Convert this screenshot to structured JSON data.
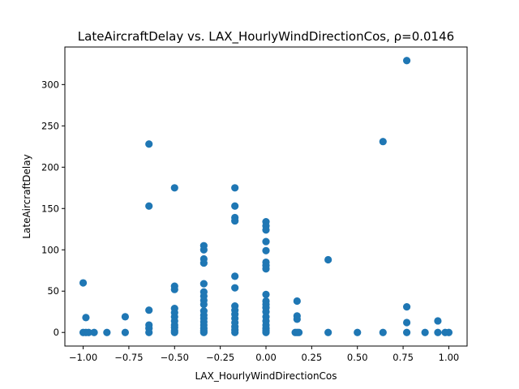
{
  "chart_data": {
    "type": "scatter",
    "title": "LateAircraftDelay vs. LAX_HourlyWindDirectionCos, ρ=0.0146",
    "xlabel": "LAX_HourlyWindDirectionCos",
    "ylabel": "LateAircraftDelay",
    "xlim": [
      -1.1,
      1.1
    ],
    "ylim": [
      -16.45,
      345.45
    ],
    "xticks": [
      -1.0,
      -0.75,
      -0.5,
      -0.25,
      0.0,
      0.25,
      0.5,
      0.75,
      1.0
    ],
    "xtick_labels": [
      "−1.00",
      "−0.75",
      "−0.50",
      "−0.25",
      "0.00",
      "0.25",
      "0.50",
      "0.75",
      "1.00"
    ],
    "yticks": [
      0,
      50,
      100,
      150,
      200,
      250,
      300
    ],
    "ytick_labels": [
      "0",
      "50",
      "100",
      "150",
      "200",
      "250",
      "300"
    ],
    "grid": false,
    "marker_color": "#1f77b4",
    "points": [
      {
        "x": -1.0,
        "y": 60
      },
      {
        "x": -0.985,
        "y": 18
      },
      {
        "x": -1.0,
        "y": 0
      },
      {
        "x": -0.985,
        "y": 0
      },
      {
        "x": -0.97,
        "y": 0
      },
      {
        "x": -0.94,
        "y": 0
      },
      {
        "x": -0.87,
        "y": 0
      },
      {
        "x": -0.77,
        "y": 19
      },
      {
        "x": -0.77,
        "y": 0
      },
      {
        "x": -0.64,
        "y": 228
      },
      {
        "x": -0.64,
        "y": 153
      },
      {
        "x": -0.64,
        "y": 27
      },
      {
        "x": -0.64,
        "y": 9
      },
      {
        "x": -0.64,
        "y": 5
      },
      {
        "x": -0.64,
        "y": 0
      },
      {
        "x": -0.5,
        "y": 175
      },
      {
        "x": -0.5,
        "y": 56
      },
      {
        "x": -0.5,
        "y": 52
      },
      {
        "x": -0.5,
        "y": 29
      },
      {
        "x": -0.5,
        "y": 24
      },
      {
        "x": -0.5,
        "y": 19
      },
      {
        "x": -0.5,
        "y": 14
      },
      {
        "x": -0.5,
        "y": 9
      },
      {
        "x": -0.5,
        "y": 6
      },
      {
        "x": -0.5,
        "y": 2
      },
      {
        "x": -0.5,
        "y": 0
      },
      {
        "x": -0.34,
        "y": 105
      },
      {
        "x": -0.34,
        "y": 100
      },
      {
        "x": -0.34,
        "y": 89
      },
      {
        "x": -0.34,
        "y": 84
      },
      {
        "x": -0.34,
        "y": 59
      },
      {
        "x": -0.34,
        "y": 49
      },
      {
        "x": -0.34,
        "y": 44
      },
      {
        "x": -0.34,
        "y": 39
      },
      {
        "x": -0.34,
        "y": 34
      },
      {
        "x": -0.34,
        "y": 26
      },
      {
        "x": -0.34,
        "y": 21
      },
      {
        "x": -0.34,
        "y": 17
      },
      {
        "x": -0.34,
        "y": 13
      },
      {
        "x": -0.34,
        "y": 9
      },
      {
        "x": -0.34,
        "y": 5
      },
      {
        "x": -0.34,
        "y": 2
      },
      {
        "x": -0.34,
        "y": 0
      },
      {
        "x": -0.17,
        "y": 175
      },
      {
        "x": -0.17,
        "y": 153
      },
      {
        "x": -0.17,
        "y": 139
      },
      {
        "x": -0.17,
        "y": 135
      },
      {
        "x": -0.17,
        "y": 68
      },
      {
        "x": -0.17,
        "y": 54
      },
      {
        "x": -0.17,
        "y": 32
      },
      {
        "x": -0.17,
        "y": 27
      },
      {
        "x": -0.17,
        "y": 22
      },
      {
        "x": -0.17,
        "y": 17
      },
      {
        "x": -0.17,
        "y": 12
      },
      {
        "x": -0.17,
        "y": 7
      },
      {
        "x": -0.17,
        "y": 3
      },
      {
        "x": -0.17,
        "y": 0
      },
      {
        "x": 0.0,
        "y": 134
      },
      {
        "x": 0.0,
        "y": 129
      },
      {
        "x": 0.0,
        "y": 124
      },
      {
        "x": 0.0,
        "y": 110
      },
      {
        "x": 0.0,
        "y": 99
      },
      {
        "x": 0.0,
        "y": 85
      },
      {
        "x": 0.0,
        "y": 81
      },
      {
        "x": 0.0,
        "y": 77
      },
      {
        "x": 0.0,
        "y": 46
      },
      {
        "x": 0.0,
        "y": 38
      },
      {
        "x": 0.0,
        "y": 34
      },
      {
        "x": 0.0,
        "y": 30
      },
      {
        "x": 0.0,
        "y": 25
      },
      {
        "x": 0.0,
        "y": 19
      },
      {
        "x": 0.0,
        "y": 14
      },
      {
        "x": 0.0,
        "y": 9
      },
      {
        "x": 0.0,
        "y": 5
      },
      {
        "x": 0.0,
        "y": 2
      },
      {
        "x": 0.0,
        "y": 0
      },
      {
        "x": 0.16,
        "y": 0
      },
      {
        "x": 0.17,
        "y": 38
      },
      {
        "x": 0.17,
        "y": 20
      },
      {
        "x": 0.17,
        "y": 16
      },
      {
        "x": 0.17,
        "y": 0
      },
      {
        "x": 0.18,
        "y": 0
      },
      {
        "x": 0.34,
        "y": 88
      },
      {
        "x": 0.34,
        "y": 0
      },
      {
        "x": 0.5,
        "y": 0
      },
      {
        "x": 0.64,
        "y": 231
      },
      {
        "x": 0.64,
        "y": 0
      },
      {
        "x": 0.77,
        "y": 329
      },
      {
        "x": 0.77,
        "y": 31
      },
      {
        "x": 0.77,
        "y": 12
      },
      {
        "x": 0.77,
        "y": 0
      },
      {
        "x": 0.87,
        "y": 0
      },
      {
        "x": 0.94,
        "y": 14
      },
      {
        "x": 0.94,
        "y": 0
      },
      {
        "x": 0.98,
        "y": 0
      },
      {
        "x": 1.0,
        "y": 0
      }
    ]
  }
}
